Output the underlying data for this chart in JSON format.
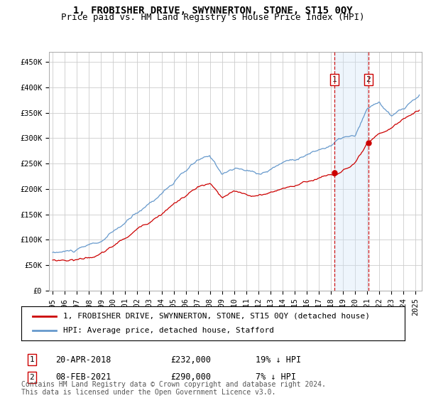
{
  "title": "1, FROBISHER DRIVE, SWYNNERTON, STONE, ST15 0QY",
  "subtitle": "Price paid vs. HM Land Registry's House Price Index (HPI)",
  "ylabel_ticks": [
    "£0",
    "£50K",
    "£100K",
    "£150K",
    "£200K",
    "£250K",
    "£300K",
    "£350K",
    "£400K",
    "£450K"
  ],
  "ytick_values": [
    0,
    50000,
    100000,
    150000,
    200000,
    250000,
    300000,
    350000,
    400000,
    450000
  ],
  "ylim": [
    0,
    470000
  ],
  "xlim_start": 1994.7,
  "xlim_end": 2025.5,
  "sale1_x": 2018.3,
  "sale2_x": 2021.1,
  "sale1_y": 232000,
  "sale2_y": 290000,
  "sale1_date": "20-APR-2018",
  "sale2_date": "08-FEB-2021",
  "sale1_price": "£232,000",
  "sale2_price": "£290,000",
  "sale1_pct": "19% ↓ HPI",
  "sale2_pct": "7% ↓ HPI",
  "hpi_color": "#6699cc",
  "price_color": "#cc0000",
  "shade_color": "#d0e4f7",
  "background_color": "#ffffff",
  "grid_color": "#cccccc",
  "legend_label_price": "1, FROBISHER DRIVE, SWYNNERTON, STONE, ST15 0QY (detached house)",
  "legend_label_hpi": "HPI: Average price, detached house, Stafford",
  "footer": "Contains HM Land Registry data © Crown copyright and database right 2024.\nThis data is licensed under the Open Government Licence v3.0.",
  "title_fontsize": 10,
  "subtitle_fontsize": 9,
  "axis_fontsize": 7.5,
  "legend_fontsize": 8,
  "footer_fontsize": 7
}
